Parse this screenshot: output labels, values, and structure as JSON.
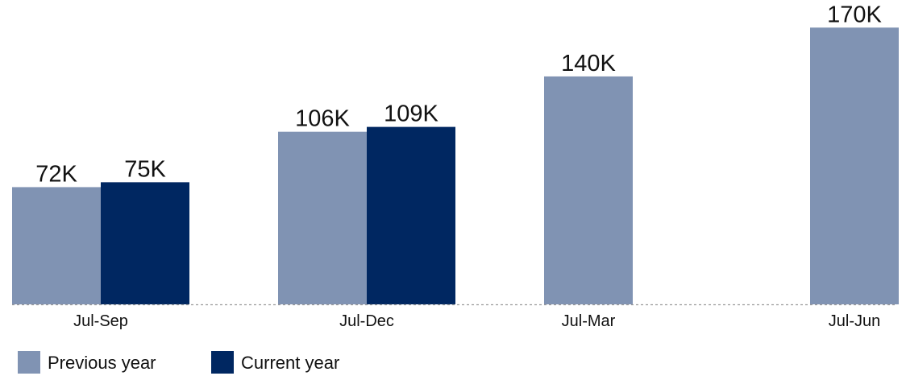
{
  "chart_data": {
    "type": "bar",
    "categories": [
      "Jul-Sep",
      "Jul-Dec",
      "Jul-Mar",
      "Jul-Jun"
    ],
    "series": [
      {
        "name": "Previous year",
        "values": [
          72,
          106,
          140,
          170
        ],
        "labels": [
          "72K",
          "106K",
          "140K",
          "170K"
        ],
        "color": "#8093b3"
      },
      {
        "name": "Current year",
        "values": [
          75,
          109,
          null,
          null
        ],
        "labels": [
          "75K",
          "109K",
          "",
          ""
        ],
        "color": "#002761"
      }
    ],
    "title": "",
    "xlabel": "",
    "ylabel": "",
    "unit": "K",
    "ylim": [
      0,
      182
    ],
    "grid": false,
    "baseline_style": "dashed",
    "legend": {
      "position": "bottom-left",
      "entries": [
        "Previous year",
        "Current year"
      ]
    }
  }
}
